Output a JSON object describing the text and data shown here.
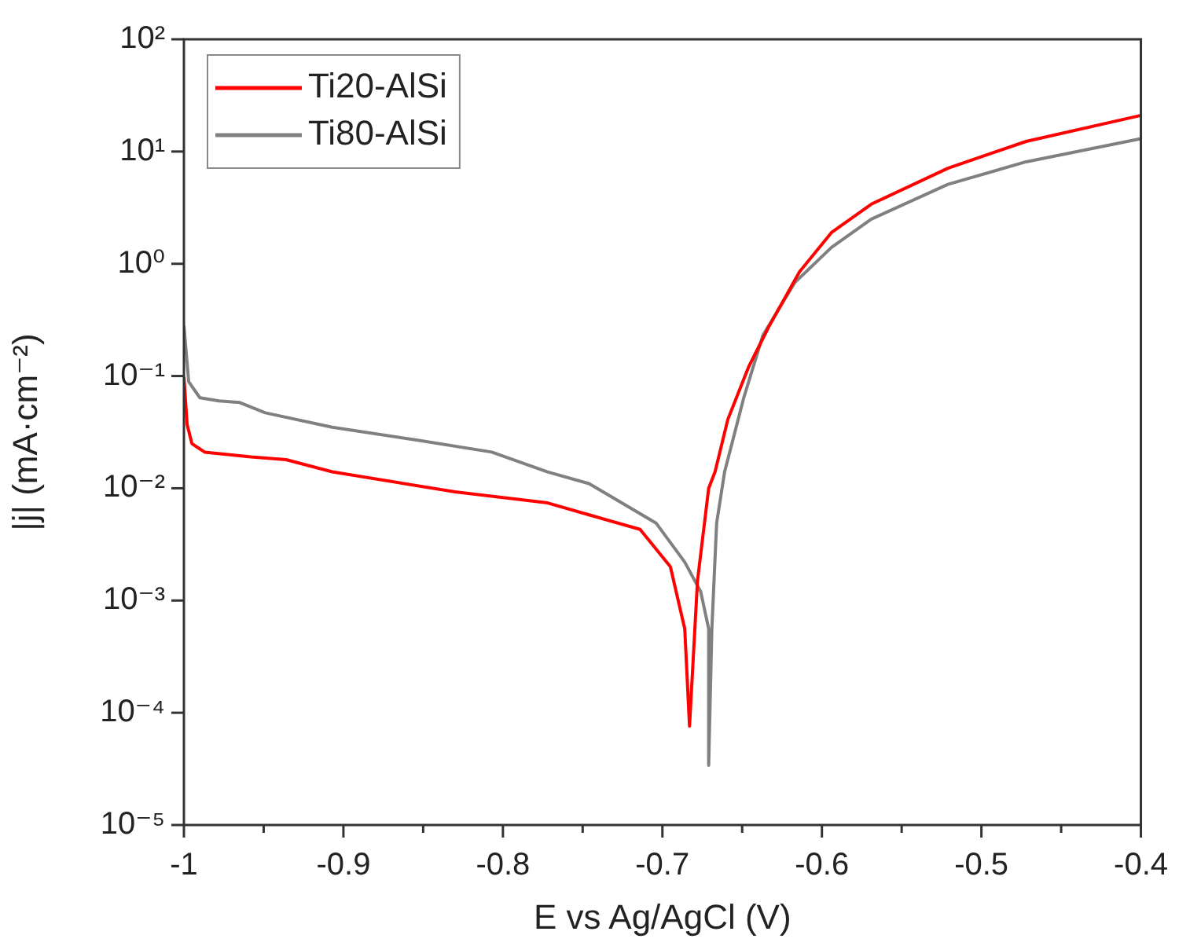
{
  "chart_data": {
    "type": "line",
    "xlabel": "E vs Ag/AgCl (V)",
    "ylabel": "|j| (mA·cm⁻²)",
    "log": "y",
    "grid": false,
    "legend": "top left",
    "marker": "none",
    "line_style": "solid",
    "xlim": [
      -1,
      -0.4
    ],
    "xticks": [
      -1,
      {
        "value": -0.95,
        "label": null
      },
      -0.9,
      {
        "value": -0.85,
        "label": null
      },
      -0.8,
      {
        "value": -0.75,
        "label": null
      },
      -0.7,
      {
        "value": -0.65,
        "label": null
      },
      -0.6,
      {
        "value": -0.55,
        "label": null
      },
      -0.5,
      {
        "value": -0.45,
        "label": null
      },
      -0.4
    ],
    "ylim": [
      1e-05,
      100
    ],
    "yticks": [
      {
        "value": 1e-05,
        "label": "10⁻⁵"
      },
      {
        "value": 0.0001,
        "label": "10⁻⁴"
      },
      {
        "value": 0.001,
        "label": "10⁻³"
      },
      {
        "value": 0.01,
        "label": "10⁻²"
      },
      {
        "value": 0.1,
        "label": "10⁻¹"
      },
      {
        "value": 1,
        "label": "10⁰"
      },
      {
        "value": 10,
        "label": "10¹"
      },
      {
        "value": 100,
        "label": "10²"
      }
    ],
    "series": [
      {
        "name": "Ti20-AlSi",
        "color": "#ff0000",
        "x": [
          -1,
          -0.998,
          -0.995,
          -0.987,
          -0.958,
          -0.936,
          -0.907,
          -0.83,
          -0.772,
          -0.746,
          -0.714,
          -0.695,
          -0.686,
          -0.683,
          -0.678,
          -0.671,
          -0.667,
          -0.659,
          -0.646,
          -0.633,
          -0.614,
          -0.594,
          -0.569,
          -0.521,
          -0.472,
          -0.4
        ],
        "values": [
          0.098,
          0.037,
          0.025,
          0.021,
          0.019,
          0.018,
          0.014,
          0.0093,
          0.0074,
          0.0058,
          0.0043,
          0.002,
          0.00056,
          7.6e-05,
          0.0015,
          0.01,
          0.014,
          0.041,
          0.12,
          0.28,
          0.85,
          1.9,
          3.4,
          7.1,
          12.3,
          21
        ]
      },
      {
        "name": "Ti80-AlSi",
        "color": "#808080",
        "x": [
          -1,
          -0.997,
          -0.99,
          -0.978,
          -0.965,
          -0.949,
          -0.907,
          -0.855,
          -0.807,
          -0.772,
          -0.746,
          -0.704,
          -0.686,
          -0.676,
          -0.671,
          -0.671,
          -0.669,
          -0.666,
          -0.661,
          -0.649,
          -0.637,
          -0.617,
          -0.594,
          -0.569,
          -0.521,
          -0.472,
          -0.4
        ],
        "values": [
          0.28,
          0.089,
          0.064,
          0.06,
          0.058,
          0.047,
          0.035,
          0.027,
          0.021,
          0.014,
          0.011,
          0.0049,
          0.0022,
          0.0012,
          0.00056,
          3.4e-05,
          0.00056,
          0.0049,
          0.014,
          0.064,
          0.23,
          0.68,
          1.4,
          2.5,
          5.1,
          8.1,
          13
        ]
      }
    ]
  }
}
